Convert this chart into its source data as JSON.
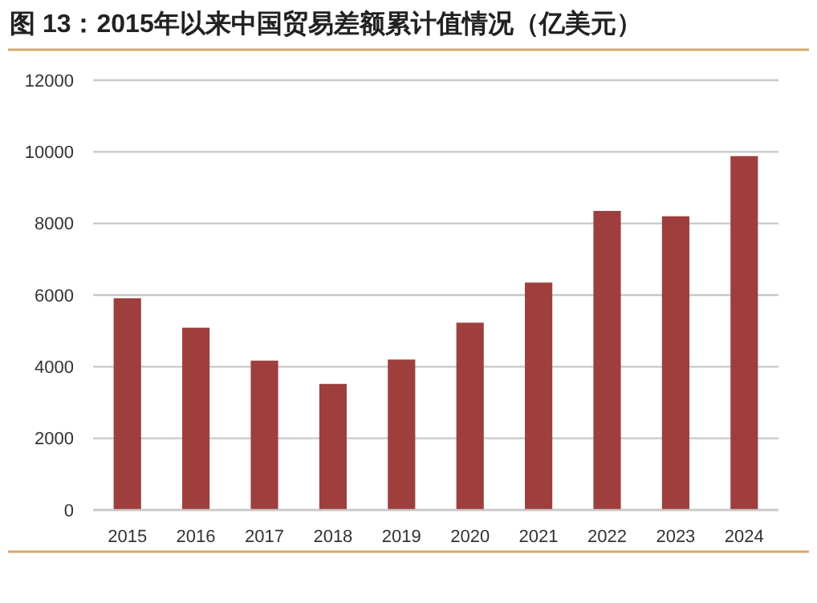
{
  "chart_data": {
    "type": "bar",
    "title": "图 13：2015年以来中国贸易差额累计值情况（亿美元）",
    "categories": [
      "2015",
      "2016",
      "2017",
      "2018",
      "2019",
      "2020",
      "2021",
      "2022",
      "2023",
      "2024"
    ],
    "values": [
      5910,
      5090,
      4170,
      3520,
      4200,
      5230,
      6350,
      8350,
      8200,
      9880
    ],
    "color": "#9e3f3d",
    "ylim": [
      0,
      12000
    ],
    "yticks": [
      0,
      2000,
      4000,
      6000,
      8000,
      10000,
      12000
    ],
    "grid": "y"
  }
}
